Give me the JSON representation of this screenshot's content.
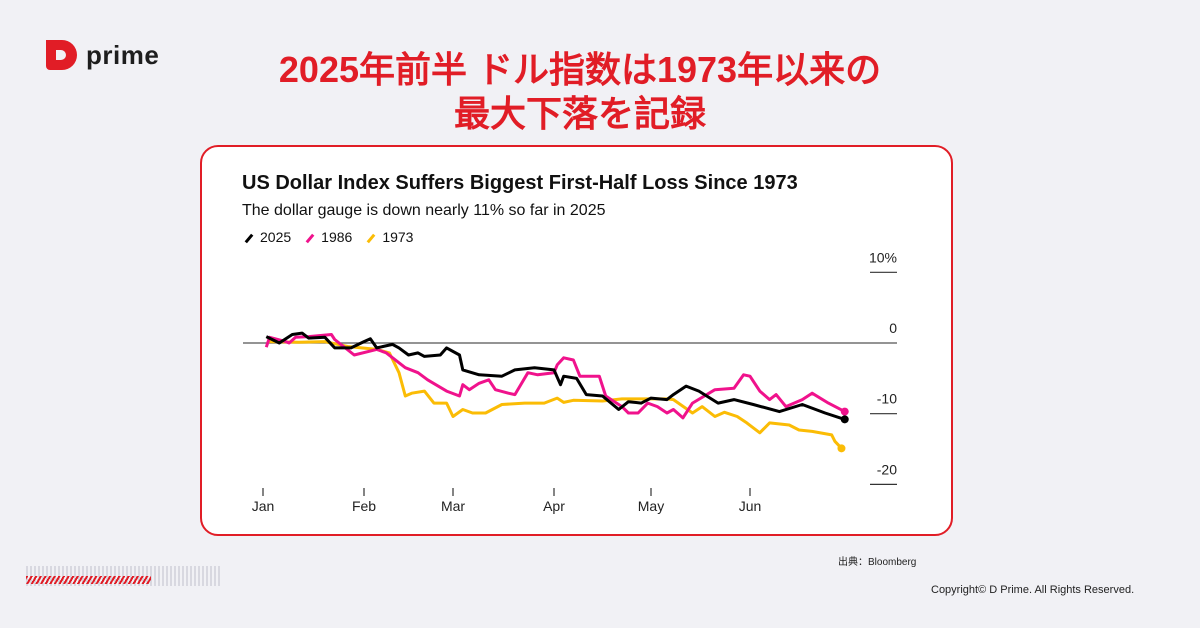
{
  "brand": {
    "name": "prime",
    "color": "#e11d26"
  },
  "headline": {
    "line1": "2025年前半 ドル指数は1973年以来の",
    "line2": "最大下落を記録"
  },
  "source": "出典：Bloomberg",
  "copyright": "Copyright© D Prime. All Rights Reserved.",
  "chart_data": {
    "type": "line",
    "title": "US Dollar Index Suffers Biggest First-Half Loss Since 1973",
    "subtitle": "The dollar gauge is down nearly 11% so far in 2025",
    "x_ticks": [
      "Jan",
      "Feb",
      "Mar",
      "Apr",
      "May",
      "Jun"
    ],
    "y_ticks": [
      "10%",
      "0",
      "-10",
      "-20"
    ],
    "ylim": [
      -20,
      10
    ],
    "legend_position": "top-left",
    "series": [
      {
        "name": "2025",
        "color": "#000000",
        "points": [
          [
            "01-02",
            0.9
          ],
          [
            "01-06",
            0
          ],
          [
            "01-10",
            1.2
          ],
          [
            "01-13",
            1.4
          ],
          [
            "01-15",
            0.7
          ],
          [
            "01-20",
            0.8
          ],
          [
            "01-23",
            -0.7
          ],
          [
            "01-28",
            -0.7
          ],
          [
            "02-01",
            0.2
          ],
          [
            "02-03",
            0.6
          ],
          [
            "02-05",
            -0.7
          ],
          [
            "02-10",
            -0.2
          ],
          [
            "02-12",
            -0.7
          ],
          [
            "02-15",
            -1.7
          ],
          [
            "02-18",
            -1.4
          ],
          [
            "02-20",
            -1.9
          ],
          [
            "02-25",
            -1.7
          ],
          [
            "02-27",
            -0.7
          ],
          [
            "03-03",
            -1.7
          ],
          [
            "03-04",
            -3.8
          ],
          [
            "03-09",
            -4.5
          ],
          [
            "03-16",
            -4.7
          ],
          [
            "03-20",
            -3.8
          ],
          [
            "03-26",
            -3.5
          ],
          [
            "04-01",
            -3.8
          ],
          [
            "04-03",
            -5.9
          ],
          [
            "04-04",
            -4.7
          ],
          [
            "04-08",
            -5.0
          ],
          [
            "04-11",
            -7.3
          ],
          [
            "04-16",
            -7.5
          ],
          [
            "04-21",
            -9.4
          ],
          [
            "04-24",
            -8.3
          ],
          [
            "04-28",
            -8.5
          ],
          [
            "05-01",
            -7.8
          ],
          [
            "05-06",
            -8.0
          ],
          [
            "05-08",
            -7.3
          ],
          [
            "05-12",
            -6.1
          ],
          [
            "05-16",
            -6.8
          ],
          [
            "05-22",
            -8.5
          ],
          [
            "05-27",
            -8.0
          ],
          [
            "06-02",
            -8.7
          ],
          [
            "06-10",
            -9.7
          ],
          [
            "06-17",
            -8.7
          ],
          [
            "06-24",
            -9.9
          ],
          [
            "06-30",
            -10.8
          ]
        ]
      },
      {
        "name": "1986",
        "color": "#f0128c",
        "points": [
          [
            "01-02",
            -0.6
          ],
          [
            "01-03",
            0.8
          ],
          [
            "01-08",
            0.2
          ],
          [
            "01-09",
            0
          ],
          [
            "01-11",
            0.8
          ],
          [
            "01-15",
            0.9
          ],
          [
            "01-22",
            1.2
          ],
          [
            "01-23",
            0.5
          ],
          [
            "01-29",
            -1.7
          ],
          [
            "02-05",
            -0.9
          ],
          [
            "02-08",
            -1.4
          ],
          [
            "02-10",
            -2.1
          ],
          [
            "02-14",
            -3.5
          ],
          [
            "02-18",
            -4.2
          ],
          [
            "02-21",
            -5.2
          ],
          [
            "02-27",
            -6.8
          ],
          [
            "03-03",
            -7.5
          ],
          [
            "03-04",
            -5.9
          ],
          [
            "03-06",
            -6.6
          ],
          [
            "03-09",
            -5.7
          ],
          [
            "03-12",
            -5.2
          ],
          [
            "03-14",
            -6.6
          ],
          [
            "03-18",
            -7.1
          ],
          [
            "03-20",
            -7.3
          ],
          [
            "03-24",
            -4.2
          ],
          [
            "03-27",
            -4.5
          ],
          [
            "04-01",
            -4.2
          ],
          [
            "04-02",
            -3.1
          ],
          [
            "04-04",
            -2.1
          ],
          [
            "04-07",
            -2.4
          ],
          [
            "04-09",
            -4.7
          ],
          [
            "04-15",
            -4.7
          ],
          [
            "04-17",
            -7.5
          ],
          [
            "04-22",
            -9.0
          ],
          [
            "04-24",
            -9.9
          ],
          [
            "04-27",
            -9.9
          ],
          [
            "04-30",
            -8.5
          ],
          [
            "05-03",
            -9.0
          ],
          [
            "05-06",
            -9.9
          ],
          [
            "05-08",
            -9.4
          ],
          [
            "05-11",
            -10.6
          ],
          [
            "05-14",
            -8.5
          ],
          [
            "05-21",
            -6.6
          ],
          [
            "05-27",
            -6.4
          ],
          [
            "05-30",
            -4.5
          ],
          [
            "06-01",
            -4.7
          ],
          [
            "06-04",
            -6.8
          ],
          [
            "06-07",
            -8.0
          ],
          [
            "06-09",
            -7.3
          ],
          [
            "06-12",
            -9.0
          ],
          [
            "06-17",
            -8.0
          ],
          [
            "06-20",
            -7.1
          ],
          [
            "06-25",
            -8.5
          ],
          [
            "06-30",
            -9.7
          ]
        ]
      },
      {
        "name": "1973",
        "color": "#fbbc05",
        "points": [
          [
            "01-03",
            0.2
          ],
          [
            "01-12",
            0.1
          ],
          [
            "01-20",
            0.2
          ],
          [
            "01-27",
            -0.5
          ],
          [
            "02-05",
            -0.9
          ],
          [
            "02-09",
            -1.4
          ],
          [
            "02-12",
            -4.2
          ],
          [
            "02-14",
            -7.5
          ],
          [
            "02-16",
            -7.1
          ],
          [
            "02-20",
            -6.8
          ],
          [
            "02-23",
            -8.5
          ],
          [
            "02-27",
            -8.5
          ],
          [
            "03-01",
            -10.4
          ],
          [
            "03-04",
            -9.4
          ],
          [
            "03-07",
            -9.9
          ],
          [
            "03-11",
            -9.9
          ],
          [
            "03-16",
            -8.7
          ],
          [
            "03-23",
            -8.5
          ],
          [
            "03-29",
            -8.5
          ],
          [
            "04-02",
            -7.8
          ],
          [
            "04-04",
            -8.4
          ],
          [
            "04-07",
            -8.1
          ],
          [
            "04-16",
            -8.2
          ],
          [
            "04-22",
            -7.9
          ],
          [
            "05-06",
            -7.9
          ],
          [
            "05-08",
            -8.0
          ],
          [
            "05-14",
            -9.9
          ],
          [
            "05-17",
            -9.0
          ],
          [
            "05-21",
            -10.4
          ],
          [
            "05-24",
            -9.8
          ],
          [
            "05-28",
            -10.4
          ],
          [
            "05-31",
            -11.3
          ],
          [
            "06-04",
            -12.7
          ],
          [
            "06-07",
            -11.3
          ],
          [
            "06-13",
            -11.6
          ],
          [
            "06-16",
            -12.3
          ],
          [
            "06-20",
            -12.5
          ],
          [
            "06-26",
            -13.0
          ],
          [
            "06-27",
            -13.9
          ],
          [
            "06-29",
            -14.9
          ]
        ]
      }
    ]
  }
}
